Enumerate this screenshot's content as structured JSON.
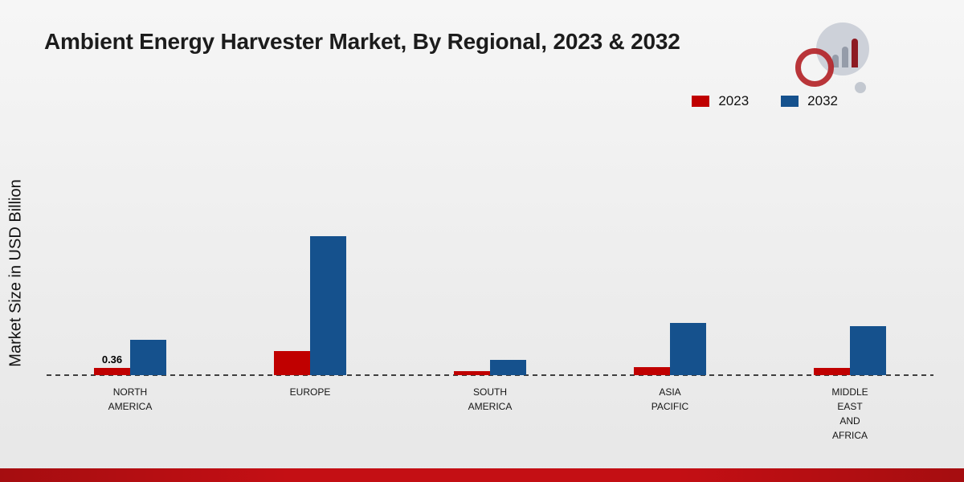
{
  "header": {
    "title": "Ambient Energy Harvester Market, By Regional, 2023 & 2032"
  },
  "chart_data": {
    "type": "bar",
    "title": "Ambient Energy Harvester Market, By Regional, 2023 & 2032",
    "xlabel": "",
    "ylabel": "Market Size in USD Billion",
    "categories": [
      "NORTH AMERICA",
      "EUROPE",
      "SOUTH AMERICA",
      "ASIA PACIFIC",
      "MIDDLE EAST AND AFRICA"
    ],
    "series": [
      {
        "name": "2023",
        "color": "#c00000",
        "values": [
          0.36,
          1.2,
          0.2,
          0.4,
          0.35
        ]
      },
      {
        "name": "2032",
        "color": "#15518d",
        "values": [
          1.75,
          6.9,
          0.75,
          2.6,
          2.45
        ]
      }
    ],
    "data_labels": [
      {
        "series": "2023",
        "category": "NORTH AMERICA",
        "category_index": 0,
        "text": "0.36"
      }
    ],
    "ylim": [
      0,
      7.5
    ],
    "grid": false,
    "legend_position": "top-right",
    "baseline_style": "dashed",
    "units": "USD Billion"
  },
  "legend": {
    "items": [
      {
        "label": "2023",
        "color": "#c00000"
      },
      {
        "label": "2032",
        "color": "#15518d"
      }
    ]
  },
  "colors": {
    "accent_red": "#c00000",
    "accent_blue": "#15518d",
    "footer_bar": "#c40f14",
    "baseline": "#3f3f3f"
  }
}
